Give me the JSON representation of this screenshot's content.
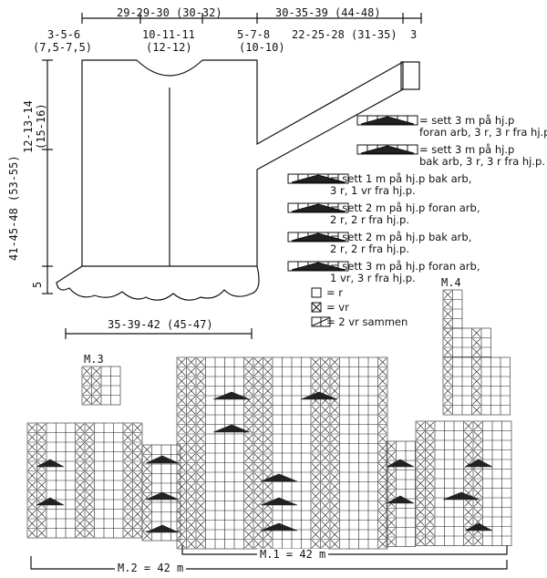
{
  "dimensions": {
    "top_width": "29-29-30 (30-32)",
    "top_right": "30-35-39 (44-48)",
    "shoulder": "3-5-6",
    "shoulder_paren": "(7,5-7,5)",
    "neck": "10-11-11",
    "neck_paren": "(12-12)",
    "neck_right": "5-7-8",
    "neck_right_paren": "(10-10)",
    "sleeve": "22-25-28 (31-35)",
    "cuff": "3",
    "armhole": "12-13-14",
    "armhole_paren": "(15-16)",
    "length": "41-45-48 (53-55)",
    "ruffle": "5",
    "bottom_width": "35-39-42 (45-47)"
  },
  "legend": [
    {
      "icon": "cable-3-front-icon",
      "text": "= sett 3 m på hj.p\nforan arb, 3 r, 3 r fra hj.p."
    },
    {
      "icon": "cable-3-back-icon",
      "text": "= sett 3 m på hj.p\nbak arb, 3 r, 3 r fra hj.p."
    },
    {
      "icon": "cable-1-back-icon",
      "text": "= sett 1 m på hj.p bak arb,\n3 r, 1 vr fra hj.p."
    },
    {
      "icon": "cable-2-front-icon",
      "text": "= sett 2 m på hj.p foran arb,\n2 r, 2 r fra hj.p."
    },
    {
      "icon": "cable-2-back-icon",
      "text": "= sett 2 m på hj.p bak arb,\n2 r, 2 r fra hj.p."
    },
    {
      "icon": "cable-3-front-purl-icon",
      "text": "= sett 3 m på hj.p foran arb,\n1 vr, 3 r fra hj.p."
    }
  ],
  "symbols": [
    {
      "icon": "knit-square-icon",
      "text": "= r"
    },
    {
      "icon": "purl-square-icon",
      "text": "= vr"
    },
    {
      "icon": "purl-two-together-icon",
      "text": "= 2 vr sammen"
    }
  ],
  "charts": {
    "m1": "M.1 = 42 m",
    "m2": "M.2 = 42 m",
    "m3": "M.3",
    "m4": "M.4"
  }
}
